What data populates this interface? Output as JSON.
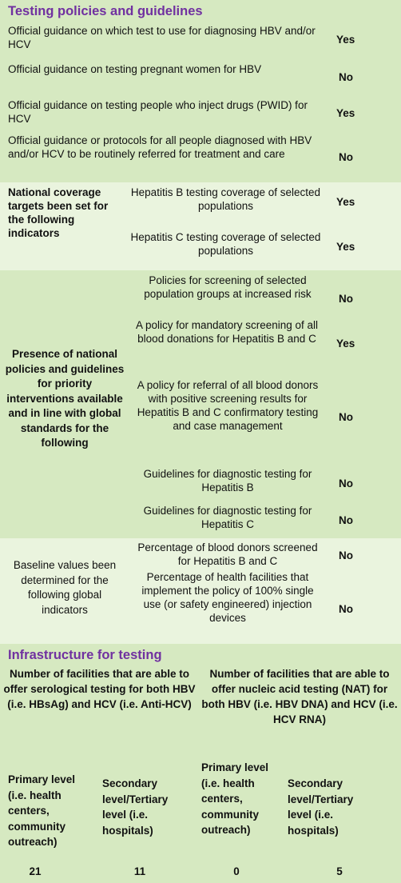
{
  "testing": {
    "title": "Testing policies and guidelines",
    "items": [
      {
        "text": "Official guidance on which test to use for diagnosing HBV and/or HCV",
        "answer": "Yes"
      },
      {
        "text": "Official guidance on testing pregnant women for HBV",
        "answer": "No"
      },
      {
        "text": "Official guidance on testing people who inject drugs (PWID) for HCV",
        "answer": "Yes"
      },
      {
        "text": "Official guidance or protocols for all people diagnosed with HBV and/or HCV to be routinely referred for treatment and care",
        "answer": "No"
      }
    ]
  },
  "coverage": {
    "label": "National coverage targets been set for the following indicators",
    "items": [
      {
        "text": "Hepatitis B testing coverage of selected populations",
        "answer": "Yes"
      },
      {
        "text": "Hepatitis C testing coverage of selected populations",
        "answer": "Yes"
      }
    ]
  },
  "policies": {
    "label": "Presence of national policies and guidelines for priority interventions available and in line with global standards for the following",
    "items": [
      {
        "text": "Policies for screening of selected population groups at increased risk",
        "answer": "No"
      },
      {
        "text": "A policy for mandatory screening of all blood donations for Hepatitis B and C",
        "answer": "Yes"
      },
      {
        "text": "A policy for referral of all blood donors with positive screening results for Hepatitis B and C confirmatory testing and case management",
        "answer": "No"
      },
      {
        "text": "Guidelines for diagnostic testing for Hepatitis B",
        "answer": "No"
      },
      {
        "text": "Guidelines for diagnostic testing for Hepatitis C",
        "answer": "No"
      }
    ]
  },
  "baseline": {
    "label": "Baseline values been determined for the following global indicators",
    "items": [
      {
        "text": "Percentage of blood donors screened for Hepatitis B and C",
        "answer": "No"
      },
      {
        "text": "Percentage of health facilities that implement the policy of 100% single use (or safety engineered) injection devices",
        "answer": "No"
      }
    ]
  },
  "infrastructure": {
    "title": "Infrastructure for testing",
    "serology_header": "Number of facilities that are able to offer serological testing for both HBV (i.e. HBsAg) and HCV (i.e. Anti-HCV)",
    "nat_header": "Number of facilities that are able to offer nucleic acid testing (NAT) for both HBV (i.e. HBV DNA) and HCV (i.e. HCV RNA)",
    "levels": [
      {
        "label": "Primary level (i.e. health centers, community outreach)",
        "value": "21"
      },
      {
        "label": "Secondary level/Tertiary level (i.e. hospitals)",
        "value": "11"
      },
      {
        "label": "Primary level (i.e. health centers, community outreach)",
        "value": "0"
      },
      {
        "label": "Secondary level/Tertiary level (i.e. hospitals)",
        "value": "5"
      }
    ]
  }
}
